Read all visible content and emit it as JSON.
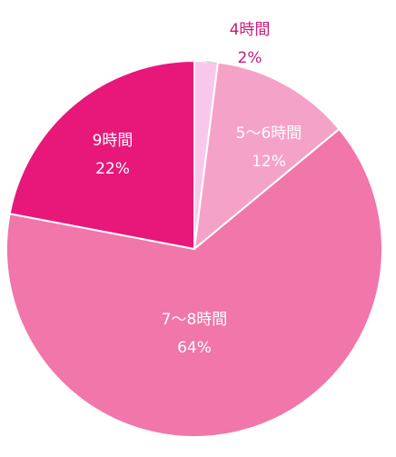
{
  "chart_data": {
    "type": "pie",
    "categories": [
      "4時間",
      "5〜6時間",
      "7〜8時間",
      "9時間"
    ],
    "values": [
      2,
      12,
      64,
      22
    ],
    "value_labels": [
      "2%",
      "12%",
      "64%",
      "22%"
    ],
    "colors": [
      "#f8c8ec",
      "#f5a2c9",
      "#f176aa",
      "#e8177a"
    ]
  }
}
